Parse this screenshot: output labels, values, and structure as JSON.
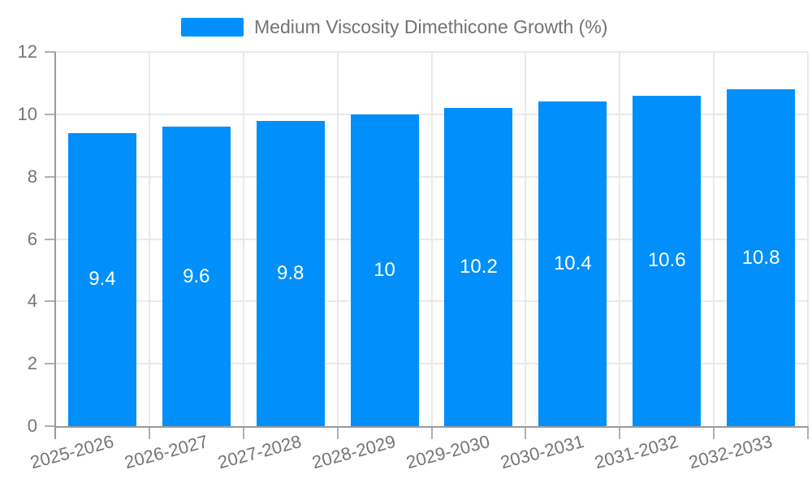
{
  "chart_data": {
    "type": "bar",
    "title": "",
    "legend_position": "top",
    "categories": [
      "2025-2026",
      "2026-2027",
      "2027-2028",
      "2028-2029",
      "2029-2030",
      "2030-2031",
      "2031-2032",
      "2032-2033"
    ],
    "series": [
      {
        "name": "Medium Viscosity Dimethicone Growth (%)",
        "values": [
          9.4,
          9.6,
          9.8,
          10,
          10.2,
          10.4,
          10.6,
          10.8
        ],
        "value_labels": [
          "9.4",
          "9.6",
          "9.8",
          "10",
          "10.2",
          "10.4",
          "10.6",
          "10.8"
        ],
        "color": "#008FFB"
      }
    ],
    "xlabel": "",
    "ylabel": "",
    "ylim": [
      0,
      12
    ],
    "y_ticks": [
      0,
      2,
      4,
      6,
      8,
      10,
      12
    ],
    "grid": "both",
    "x_label_rotation_deg": -15,
    "colors": {
      "bar": "#008FFB",
      "bar_label_text": "#ffffff",
      "axis_text": "#757575",
      "legend_text": "#737373",
      "gridline": "#e9e9e9",
      "axis_line": "#9a9a9a",
      "tick_mark": "#b0b0b0"
    }
  }
}
